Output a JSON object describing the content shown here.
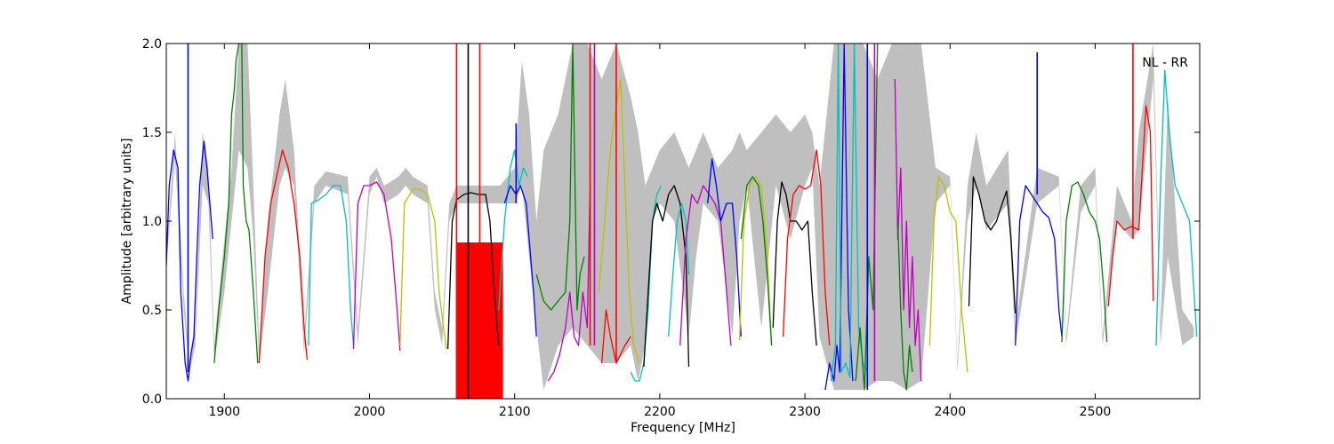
{
  "chart_data": {
    "type": "line",
    "xlabel": "Frequency [MHz]",
    "ylabel": "Amplitude [arbitrary units]",
    "annotation": "NL - RR",
    "xlim": [
      1860,
      2572
    ],
    "ylim": [
      0.0,
      2.0
    ],
    "xticks": [
      1900,
      2000,
      2100,
      2200,
      2300,
      2400,
      2500
    ],
    "yticks": [
      0.0,
      0.5,
      1.0,
      1.5,
      2.0
    ],
    "ytick_labels": [
      "0.0",
      "0.5",
      "1.0",
      "1.5",
      "2.0"
    ],
    "grid": false,
    "envelope": {
      "color": "#bfbfbf",
      "x": [
        1860,
        1866,
        1872,
        1876,
        1880,
        1885,
        1889,
        1893,
        1900,
        1905,
        1910,
        1916,
        1920,
        1924,
        1930,
        1938,
        1942,
        1948,
        1955,
        1962,
        1970,
        1985,
        1992,
        2000,
        2005,
        2010,
        2020,
        2025,
        2030,
        2040,
        2045,
        2050,
        2055,
        2060,
        2070,
        2080,
        2090,
        2100,
        2105,
        2110,
        2115,
        2120,
        2130,
        2140,
        2150,
        2160,
        2170,
        2180,
        2185,
        2190,
        2195,
        2200,
        2210,
        2220,
        2225,
        2230,
        2240,
        2250,
        2255,
        2260,
        2270,
        2280,
        2290,
        2300,
        2305,
        2310,
        2320,
        2330,
        2340,
        2350,
        2360,
        2370,
        2380,
        2390,
        2400,
        2405,
        2412,
        2418,
        2425,
        2440,
        2445,
        2460,
        2475,
        2480,
        2490,
        2500,
        2505,
        2515,
        2525,
        2530,
        2540,
        2545,
        2550,
        2560,
        2568
      ],
      "low": [
        0.75,
        1.35,
        0.5,
        0.15,
        0.3,
        1.2,
        1.1,
        0.2,
        0.6,
        1.0,
        1.4,
        1.3,
        0.9,
        0.2,
        0.6,
        1.2,
        1.3,
        1.2,
        0.25,
        1.1,
        1.2,
        1.15,
        0.3,
        1.15,
        1.25,
        1.1,
        1.15,
        1.2,
        1.15,
        1.1,
        0.5,
        0.3,
        1.0,
        1.1,
        1.1,
        1.1,
        1.1,
        1.1,
        1.2,
        0.8,
        0.4,
        0.05,
        0.3,
        0.4,
        0.3,
        0.2,
        0.2,
        0.3,
        0.1,
        0.3,
        1.0,
        1.1,
        1.0,
        0.35,
        0.8,
        1.1,
        1.0,
        0.35,
        1.0,
        1.2,
        0.4,
        1.2,
        0.9,
        1.2,
        1.3,
        0.35,
        0.05,
        0.05,
        0.05,
        0.1,
        0.1,
        0.05,
        0.1,
        1.1,
        1.2,
        0.15,
        1.0,
        1.2,
        0.95,
        1.1,
        0.3,
        1.1,
        1.2,
        0.3,
        1.05,
        1.2,
        0.3,
        1.0,
        0.9,
        0.95,
        1.8,
        0.3,
        0.8,
        0.3,
        0.35
      ],
      "high": [
        0.8,
        1.5,
        0.6,
        0.2,
        0.4,
        1.5,
        1.3,
        0.3,
        0.9,
        1.3,
        2.0,
        2.0,
        1.2,
        0.3,
        1.0,
        1.6,
        1.8,
        1.4,
        0.35,
        1.2,
        1.28,
        1.25,
        0.4,
        1.25,
        1.3,
        1.2,
        1.25,
        1.3,
        1.25,
        1.2,
        0.6,
        0.4,
        1.1,
        1.2,
        1.2,
        1.2,
        1.2,
        1.3,
        1.9,
        1.6,
        1.0,
        1.4,
        1.6,
        2.0,
        2.0,
        1.8,
        2.0,
        1.7,
        1.5,
        1.2,
        1.3,
        1.4,
        1.5,
        1.3,
        1.4,
        1.5,
        1.3,
        1.4,
        1.5,
        1.4,
        1.5,
        1.6,
        1.5,
        1.6,
        1.5,
        1.2,
        2.0,
        2.0,
        2.0,
        1.8,
        2.0,
        2.0,
        2.0,
        1.3,
        1.25,
        0.2,
        1.2,
        1.5,
        1.2,
        1.4,
        0.4,
        1.3,
        1.25,
        0.35,
        1.2,
        1.3,
        0.35,
        1.2,
        1.0,
        1.5,
        2.0,
        0.4,
        1.7,
        0.5,
        0.4
      ]
    },
    "series": [
      {
        "color": "#0000ff",
        "x": [
          1860,
          1862,
          1865,
          1868,
          1870,
          1873,
          1875,
          1877,
          1879,
          1881,
          1883,
          1886,
          1888,
          1890,
          1892
        ],
        "y": [
          0.75,
          1.2,
          1.4,
          1.3,
          0.6,
          0.2,
          0.1,
          0.25,
          0.35,
          0.8,
          1.2,
          1.45,
          1.3,
          1.1,
          0.9
        ]
      },
      {
        "color": "#008000",
        "x": [
          1893,
          1896,
          1900,
          1903,
          1905,
          1907,
          1908,
          1910,
          1912,
          1913,
          1915,
          1917,
          1920,
          1923
        ],
        "y": [
          0.2,
          0.5,
          0.8,
          1.1,
          1.6,
          1.75,
          1.9,
          2.0,
          2.0,
          1.2,
          1.0,
          0.95,
          0.6,
          0.2
        ]
      },
      {
        "color": "#ff0000",
        "x": [
          1924,
          1928,
          1932,
          1936,
          1940,
          1944,
          1948,
          1952,
          1955,
          1957
        ],
        "y": [
          0.2,
          0.8,
          1.1,
          1.25,
          1.4,
          1.3,
          1.1,
          0.8,
          0.4,
          0.22
        ]
      },
      {
        "color": "#00bfbf",
        "x": [
          1958,
          1960,
          1965,
          1970,
          1975,
          1980,
          1984,
          1987,
          1989
        ],
        "y": [
          0.3,
          1.1,
          1.12,
          1.15,
          1.2,
          1.2,
          1.0,
          0.5,
          0.3
        ]
      },
      {
        "color": "#bf00bf",
        "x": [
          1989,
          1992,
          1996,
          2000,
          2005,
          2010,
          2015,
          2019,
          2021
        ],
        "y": [
          0.28,
          1.1,
          1.2,
          1.2,
          1.22,
          1.15,
          0.9,
          0.5,
          0.27
        ]
      },
      {
        "color": "#bfbf00",
        "x": [
          2021,
          2024,
          2030,
          2035,
          2040,
          2045,
          2048,
          2051,
          2053
        ],
        "y": [
          0.3,
          1.1,
          1.18,
          1.18,
          1.15,
          1.0,
          0.6,
          0.4,
          0.28
        ]
      },
      {
        "color": "#000000",
        "x": [
          2054,
          2057,
          2060,
          2065,
          2070,
          2075,
          2080,
          2083,
          2086,
          2089
        ],
        "y": [
          0.28,
          1.0,
          1.12,
          1.15,
          1.16,
          1.15,
          1.15,
          1.0,
          0.6,
          0.3
        ]
      },
      {
        "color": "#00bfbf",
        "x": [
          2089,
          2093,
          2097,
          2100,
          2103,
          2106,
          2109
        ],
        "y": [
          0.5,
          1.0,
          1.3,
          1.4,
          1.2,
          1.3,
          1.25
        ]
      },
      {
        "color": "#0000ff",
        "x": [
          2093,
          2097,
          2101,
          2104,
          2106,
          2108,
          2110,
          2113,
          2115
        ],
        "y": [
          1.1,
          1.2,
          1.15,
          1.2,
          1.15,
          1.1,
          0.9,
          0.6,
          0.35
        ]
      },
      {
        "color": "#008000",
        "x": [
          2115,
          2120,
          2125,
          2130,
          2135,
          2138,
          2140,
          2143,
          2145,
          2148
        ],
        "y": [
          0.7,
          0.55,
          0.5,
          0.55,
          0.6,
          1.0,
          2.0,
          0.5,
          0.7,
          0.8
        ]
      },
      {
        "color": "#bf00bf",
        "x": [
          2123,
          2127,
          2131,
          2135,
          2138,
          2141,
          2144,
          2147,
          2150,
          2152
        ],
        "y": [
          0.1,
          0.15,
          0.25,
          0.4,
          0.6,
          0.35,
          0.3,
          0.6,
          0.4,
          1.2
        ]
      },
      {
        "color": "#bfbf00",
        "x": [
          2158,
          2162,
          2166,
          2170,
          2173,
          2176,
          2179,
          2182,
          2186
        ],
        "y": [
          0.6,
          1.0,
          1.4,
          1.65,
          1.8,
          1.2,
          0.6,
          0.3,
          0.2
        ]
      },
      {
        "color": "#ff0000",
        "x": [
          2160,
          2163,
          2166,
          2170,
          2173,
          2176,
          2180
        ],
        "y": [
          0.2,
          0.5,
          0.35,
          0.2,
          0.25,
          0.3,
          0.35
        ]
      },
      {
        "color": "#00bfbf",
        "x": [
          2180,
          2183,
          2186,
          2189,
          2192,
          2195,
          2198,
          2201
        ],
        "y": [
          0.15,
          0.1,
          0.1,
          0.2,
          0.5,
          1.0,
          1.15,
          1.2
        ]
      },
      {
        "color": "#000000",
        "x": [
          2189,
          2192,
          2195,
          2198,
          2202,
          2206,
          2210,
          2214,
          2218,
          2220
        ],
        "y": [
          0.18,
          0.6,
          1.0,
          1.1,
          1.0,
          1.15,
          1.2,
          1.1,
          0.8,
          0.18
        ]
      },
      {
        "color": "#00bfbf",
        "x": [
          2206,
          2209,
          2212,
          2215,
          2218,
          2220
        ],
        "y": [
          0.35,
          0.7,
          1.0,
          1.1,
          1.0,
          0.7
        ]
      },
      {
        "color": "#bf00bf",
        "x": [
          2214,
          2218,
          2222,
          2226,
          2230,
          2234,
          2238,
          2242,
          2246,
          2249
        ],
        "y": [
          0.3,
          0.9,
          1.15,
          1.1,
          1.2,
          1.15,
          1.1,
          1.0,
          0.6,
          0.3
        ]
      },
      {
        "color": "#0000ff",
        "x": [
          2233,
          2236,
          2239,
          2242,
          2246,
          2250,
          2253,
          2256
        ],
        "y": [
          1.1,
          1.35,
          1.2,
          1.0,
          1.1,
          1.1,
          0.8,
          0.35
        ]
      },
      {
        "color": "#bfbf00",
        "x": [
          2255,
          2258,
          2262,
          2266,
          2270,
          2274,
          2277
        ],
        "y": [
          0.33,
          1.0,
          1.2,
          1.25,
          1.2,
          0.8,
          0.3
        ]
      },
      {
        "color": "#008000",
        "x": [
          2256,
          2260,
          2264,
          2268,
          2271,
          2274,
          2277
        ],
        "y": [
          0.9,
          1.2,
          1.25,
          1.2,
          1.0,
          0.7,
          0.3
        ]
      },
      {
        "color": "#000000",
        "x": [
          2278,
          2281,
          2284,
          2287,
          2290,
          2294,
          2298,
          2302,
          2305,
          2308
        ],
        "y": [
          0.4,
          1.0,
          1.22,
          1.15,
          1.0,
          1.0,
          0.95,
          1.0,
          0.6,
          0.3
        ]
      },
      {
        "color": "#ff0000",
        "x": [
          2285,
          2288,
          2292,
          2296,
          2300,
          2304,
          2308,
          2311,
          2314,
          2317
        ],
        "y": [
          0.35,
          0.9,
          1.15,
          1.2,
          1.18,
          1.2,
          1.4,
          1.2,
          0.6,
          0.3
        ]
      },
      {
        "color": "#0000ff",
        "x": [
          2314,
          2317,
          2320,
          2322,
          2324,
          2327,
          2330,
          2333
        ],
        "y": [
          0.05,
          0.2,
          0.1,
          0.3,
          0.15,
          2.0,
          0.5,
          0.1
        ]
      },
      {
        "color": "#00bfbf",
        "x": [
          2318,
          2321,
          2323,
          2325,
          2328,
          2331,
          2334,
          2337,
          2340,
          2343
        ],
        "y": [
          0.1,
          0.3,
          2.0,
          0.15,
          0.2,
          0.12,
          2.0,
          0.4,
          0.2,
          0.15
        ]
      },
      {
        "color": "#008000",
        "x": [
          2335,
          2338,
          2341,
          2344,
          2347,
          2350
        ],
        "y": [
          0.1,
          0.4,
          0.05,
          0.8,
          0.5,
          2.0
        ]
      },
      {
        "color": "#bf00bf",
        "x": [
          2362,
          2364,
          2366,
          2368,
          2370,
          2372,
          2374,
          2376,
          2378,
          2380
        ],
        "y": [
          1.8,
          0.9,
          1.3,
          0.5,
          1.0,
          0.4,
          0.8,
          0.3,
          0.5,
          0.1
        ]
      },
      {
        "color": "#008000",
        "x": [
          2364,
          2366,
          2368,
          2370,
          2372,
          2374
        ],
        "y": [
          1.0,
          0.5,
          0.15,
          0.05,
          0.3,
          0.15
        ]
      },
      {
        "color": "#bfbf00",
        "x": [
          2386,
          2389,
          2392,
          2396,
          2400,
          2404,
          2408,
          2412
        ],
        "y": [
          0.3,
          1.0,
          1.25,
          1.2,
          1.05,
          1.0,
          0.5,
          0.15
        ]
      },
      {
        "color": "#000000",
        "x": [
          2413,
          2416,
          2420,
          2424,
          2428,
          2432,
          2436,
          2439,
          2442,
          2445
        ],
        "y": [
          0.52,
          1.25,
          1.15,
          1.0,
          0.95,
          1.0,
          1.1,
          1.17,
          0.9,
          0.48
        ]
      },
      {
        "color": "#0000ff",
        "x": [
          2445,
          2448,
          2452,
          2456,
          2460,
          2464,
          2468,
          2472,
          2475,
          2477
        ],
        "y": [
          0.3,
          1.0,
          1.2,
          1.15,
          1.1,
          1.05,
          1.02,
          0.9,
          0.5,
          0.35
        ]
      },
      {
        "color": "#008000",
        "x": [
          2477,
          2480,
          2484,
          2488,
          2492,
          2496,
          2500,
          2503,
          2506,
          2508
        ],
        "y": [
          0.32,
          1.0,
          1.2,
          1.22,
          1.15,
          1.05,
          1.0,
          0.9,
          0.6,
          0.32
        ]
      },
      {
        "color": "#ff0000",
        "x": [
          2509,
          2512,
          2515,
          2520,
          2525,
          2530,
          2535,
          2538,
          2540
        ],
        "y": [
          0.52,
          0.8,
          1.0,
          0.95,
          0.97,
          0.95,
          1.65,
          1.5,
          0.55
        ]
      },
      {
        "color": "#00bfbf",
        "x": [
          2542,
          2545,
          2548,
          2551,
          2555,
          2560,
          2565,
          2570
        ],
        "y": [
          0.3,
          1.2,
          1.85,
          1.5,
          1.2,
          1.1,
          1.0,
          0.35
        ]
      }
    ],
    "spikes": [
      {
        "color": "#0000ff",
        "x": 1875,
        "y0": 0.15,
        "y1": 2.0
      },
      {
        "color": "#ff0000",
        "x": 2060,
        "y0": 0.0,
        "y1": 2.0
      },
      {
        "color": "#000000",
        "x": 2068,
        "y0": 0.0,
        "y1": 2.0
      },
      {
        "color": "#ff0000",
        "x": 2076,
        "y0": 0.0,
        "y1": 2.0
      },
      {
        "color": "#0000ff",
        "x": 2101,
        "y0": 1.1,
        "y1": 1.55
      },
      {
        "color": "#ff0000",
        "x": 2152,
        "y0": 0.3,
        "y1": 2.0
      },
      {
        "color": "#bf00bf",
        "x": 2155,
        "y0": 0.3,
        "y1": 2.0
      },
      {
        "color": "#ff0000",
        "x": 2170,
        "y0": 0.2,
        "y1": 2.0
      },
      {
        "color": "#0000ff",
        "x": 2343,
        "y0": 0.05,
        "y1": 2.0
      },
      {
        "color": "#bf00bf",
        "x": 2348,
        "y0": 0.1,
        "y1": 2.0
      },
      {
        "color": "#0000ff",
        "x": 2460,
        "y0": 1.15,
        "y1": 1.95
      },
      {
        "color": "#ff0000",
        "x": 2526,
        "y0": 0.9,
        "y1": 2.0
      }
    ],
    "noise_block": {
      "color": "#ff0000",
      "x0": 2060,
      "x1": 2092,
      "ymin": 0.0,
      "ymax": 0.88
    }
  }
}
